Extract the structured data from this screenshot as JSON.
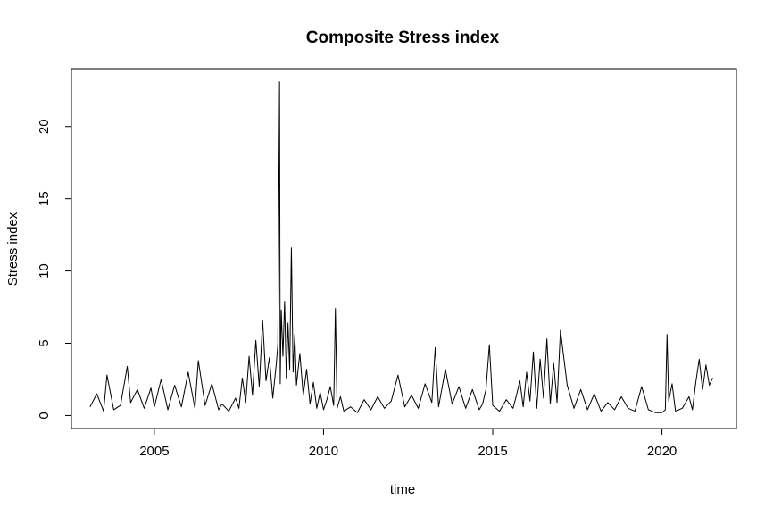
{
  "chart_data": {
    "type": "line",
    "title": "Composite Stress index",
    "xlabel": "time",
    "ylabel": "Stress index",
    "xlim": [
      2002.55,
      2022.2
    ],
    "ylim": [
      -0.9,
      24.0
    ],
    "grid": false,
    "legend": "none",
    "x_ticks": [
      2005,
      2010,
      2015,
      2020
    ],
    "x_tick_labels": [
      "2005",
      "2010",
      "2015",
      "2020"
    ],
    "y_ticks": [
      0,
      5,
      10,
      15,
      20
    ],
    "y_tick_labels": [
      "0",
      "5",
      "10",
      "15",
      "20"
    ],
    "line_color": "#000000",
    "series": [
      {
        "x": [
          2003.1,
          2003.3,
          2003.5,
          2003.6,
          2003.8,
          2004.0,
          2004.2,
          2004.3,
          2004.5,
          2004.7,
          2004.9,
          2005.0,
          2005.2,
          2005.4,
          2005.6,
          2005.8,
          2006.0,
          2006.2,
          2006.3,
          2006.5,
          2006.7,
          2006.9,
          2007.0,
          2007.2,
          2007.4,
          2007.5,
          2007.6,
          2007.7,
          2007.8,
          2007.9,
          2008.0,
          2008.1,
          2008.2,
          2008.3,
          2008.4,
          2008.5,
          2008.6,
          2008.65,
          2008.7,
          2008.72,
          2008.75,
          2008.8,
          2008.85,
          2008.9,
          2008.95,
          2009.0,
          2009.05,
          2009.1,
          2009.15,
          2009.2,
          2009.3,
          2009.4,
          2009.5,
          2009.6,
          2009.7,
          2009.8,
          2009.9,
          2010.0,
          2010.1,
          2010.2,
          2010.3,
          2010.35,
          2010.4,
          2010.5,
          2010.6,
          2010.8,
          2011.0,
          2011.2,
          2011.4,
          2011.6,
          2011.8,
          2012.0,
          2012.2,
          2012.4,
          2012.6,
          2012.8,
          2013.0,
          2013.2,
          2013.3,
          2013.4,
          2013.6,
          2013.8,
          2014.0,
          2014.2,
          2014.4,
          2014.6,
          2014.7,
          2014.8,
          2014.9,
          2015.0,
          2015.2,
          2015.4,
          2015.6,
          2015.7,
          2015.8,
          2015.9,
          2016.0,
          2016.1,
          2016.2,
          2016.3,
          2016.4,
          2016.5,
          2016.6,
          2016.7,
          2016.8,
          2016.9,
          2017.0,
          2017.2,
          2017.4,
          2017.6,
          2017.8,
          2018.0,
          2018.2,
          2018.4,
          2018.6,
          2018.8,
          2019.0,
          2019.2,
          2019.4,
          2019.6,
          2019.8,
          2020.0,
          2020.1,
          2020.15,
          2020.2,
          2020.3,
          2020.4,
          2020.6,
          2020.8,
          2020.9,
          2021.0,
          2021.1,
          2021.2,
          2021.3,
          2021.4,
          2021.5
        ],
        "values": [
          0.6,
          1.5,
          0.3,
          2.8,
          0.4,
          0.7,
          3.4,
          0.9,
          1.8,
          0.5,
          1.9,
          0.6,
          2.5,
          0.4,
          2.1,
          0.6,
          3.0,
          0.5,
          3.8,
          0.7,
          2.2,
          0.4,
          0.8,
          0.3,
          1.2,
          0.5,
          2.6,
          0.9,
          4.1,
          1.4,
          5.2,
          2.0,
          6.6,
          2.4,
          4.0,
          1.2,
          3.5,
          4.9,
          23.1,
          2.2,
          7.3,
          4.1,
          7.9,
          2.6,
          6.4,
          3.2,
          11.6,
          3.0,
          5.6,
          2.1,
          4.3,
          1.4,
          3.2,
          0.8,
          2.3,
          0.5,
          1.6,
          0.4,
          1.1,
          2.0,
          0.7,
          7.4,
          0.5,
          1.3,
          0.3,
          0.6,
          0.2,
          1.1,
          0.4,
          1.3,
          0.5,
          1.0,
          2.8,
          0.6,
          1.4,
          0.5,
          2.2,
          0.9,
          4.7,
          0.6,
          3.2,
          0.8,
          2.0,
          0.5,
          1.8,
          0.4,
          0.8,
          1.8,
          4.9,
          0.7,
          0.3,
          1.1,
          0.5,
          1.4,
          2.4,
          0.6,
          3.0,
          1.0,
          4.4,
          0.5,
          3.9,
          1.2,
          5.3,
          0.8,
          3.6,
          0.9,
          5.9,
          2.1,
          0.5,
          1.8,
          0.4,
          1.5,
          0.3,
          0.9,
          0.4,
          1.3,
          0.5,
          0.3,
          2.0,
          0.4,
          0.2,
          0.2,
          0.4,
          5.6,
          1.0,
          2.2,
          0.3,
          0.5,
          1.3,
          0.4,
          2.3,
          3.9,
          1.8,
          3.5,
          2.1,
          2.6
        ]
      }
    ]
  }
}
